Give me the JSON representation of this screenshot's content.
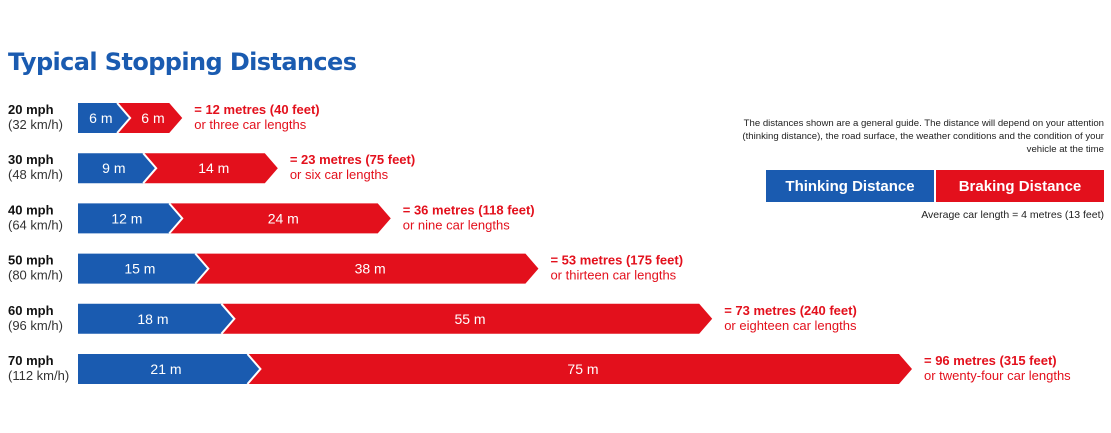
{
  "title": "Typical Stopping Distances",
  "note": "The distances shown are a general guide. The distance will depend on your attention (thinking distance), the road surface, the weather conditions and the condition of your vehicle at the time",
  "legend": {
    "thinking": "Thinking Distance",
    "braking": "Braking Distance"
  },
  "car_length_note": "Average car length = 4 metres (13 feet)",
  "colors": {
    "thinking": "#1a5bb0",
    "braking": "#e3101c"
  },
  "chart_data": {
    "type": "bar",
    "orientation": "horizontal",
    "stacked": true,
    "categories": [
      "20 mph",
      "30 mph",
      "40 mph",
      "50 mph",
      "60 mph",
      "70 mph"
    ],
    "category_sublabels": [
      "(32 km/h)",
      "(48 km/h)",
      "(64 km/h)",
      "(80 km/h)",
      "(96 km/h)",
      "(112 km/h)"
    ],
    "unit": "m",
    "series": [
      {
        "name": "Thinking Distance",
        "values": [
          6,
          9,
          12,
          15,
          18,
          21
        ]
      },
      {
        "name": "Braking Distance",
        "values": [
          6,
          14,
          24,
          38,
          55,
          75
        ]
      }
    ],
    "totals": [
      "= 12 metres (40 feet)",
      "= 23 metres (75 feet)",
      "= 36 metres (118 feet)",
      "= 53 metres (175 feet)",
      "= 73 metres (240 feet)",
      "= 96 metres (315 feet)"
    ],
    "car_lengths": [
      "or three car lengths",
      "or six car lengths",
      "or nine car lengths",
      "or thirteen car lengths",
      "or eighteen car lengths",
      "or twenty-four car lengths"
    ],
    "xlim": [
      0,
      96
    ],
    "grid": false,
    "legend_position": "right"
  }
}
